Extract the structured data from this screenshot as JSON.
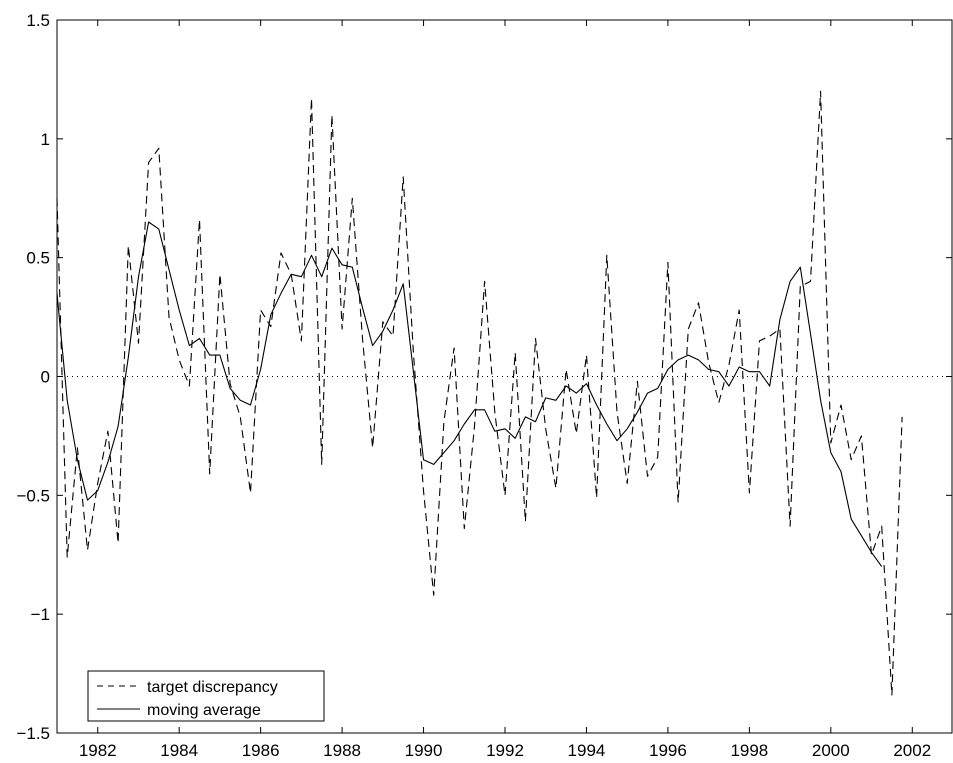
{
  "chart_data": {
    "type": "line",
    "title": "",
    "xlabel": "",
    "ylabel": "",
    "xlim": [
      1981,
      2003
    ],
    "ylim": [
      -1.5,
      1.5
    ],
    "xticks": [
      1982,
      1984,
      1986,
      1988,
      1990,
      1992,
      1994,
      1996,
      1998,
      2000,
      2002
    ],
    "yticks": [
      -1.5,
      -1,
      -0.5,
      0,
      0.5,
      1,
      1.5
    ],
    "xtick_labels": [
      "1982",
      "1984",
      "1986",
      "1988",
      "1990",
      "1992",
      "1994",
      "1996",
      "1998",
      "2000",
      "2002"
    ],
    "ytick_labels": [
      "−1.5",
      "−1",
      "−0.5",
      "0",
      "0.5",
      "1",
      "1.5"
    ],
    "grid": false,
    "zero_line": {
      "y": 0,
      "style": "dotted"
    },
    "legend": {
      "position": "bottom-left",
      "entries": [
        {
          "label": "target discrepancy",
          "style": "dashed"
        },
        {
          "label": "moving average",
          "style": "solid"
        }
      ]
    },
    "series": [
      {
        "name": "target discrepancy",
        "style": "dashed",
        "color": "#000000",
        "x": [
          1981.0,
          1981.25,
          1981.5,
          1981.75,
          1982.0,
          1982.25,
          1982.5,
          1982.75,
          1983.0,
          1983.25,
          1983.5,
          1983.75,
          1984.0,
          1984.25,
          1984.5,
          1984.75,
          1985.0,
          1985.25,
          1985.5,
          1985.75,
          1986.0,
          1986.25,
          1986.5,
          1986.75,
          1987.0,
          1987.25,
          1987.5,
          1987.75,
          1988.0,
          1988.25,
          1988.5,
          1988.75,
          1989.0,
          1989.25,
          1989.5,
          1989.75,
          1990.0,
          1990.25,
          1990.5,
          1990.75,
          1991.0,
          1991.25,
          1991.5,
          1991.75,
          1992.0,
          1992.25,
          1992.5,
          1992.75,
          1993.0,
          1993.25,
          1993.5,
          1993.75,
          1994.0,
          1994.25,
          1994.5,
          1994.75,
          1995.0,
          1995.25,
          1995.5,
          1995.75,
          1996.0,
          1996.25,
          1996.5,
          1996.75,
          1997.0,
          1997.25,
          1997.5,
          1997.75,
          1998.0,
          1998.25,
          1998.5,
          1998.75,
          1999.0,
          1999.25,
          1999.5,
          1999.75,
          2000.0,
          2000.25,
          2000.5,
          2000.75,
          2001.0,
          2001.25,
          2001.5,
          2001.75
        ],
        "values": [
          0.75,
          -0.76,
          -0.3,
          -0.73,
          -0.45,
          -0.23,
          -0.7,
          0.55,
          0.14,
          0.9,
          0.96,
          0.25,
          0.07,
          -0.04,
          0.66,
          -0.41,
          0.43,
          -0.03,
          -0.17,
          -0.49,
          0.28,
          0.21,
          0.52,
          0.43,
          0.15,
          1.17,
          -0.37,
          1.1,
          0.2,
          0.75,
          0.16,
          -0.3,
          0.23,
          0.17,
          0.84,
          0.1,
          -0.48,
          -0.92,
          -0.19,
          0.12,
          -0.64,
          -0.21,
          0.4,
          -0.15,
          -0.5,
          0.1,
          -0.61,
          0.16,
          -0.22,
          -0.47,
          0.03,
          -0.24,
          0.09,
          -0.51,
          0.51,
          -0.15,
          -0.45,
          -0.02,
          -0.42,
          -0.34,
          0.48,
          -0.53,
          0.2,
          0.31,
          0.06,
          -0.11,
          0.05,
          0.28,
          -0.49,
          0.15,
          0.17,
          0.2,
          -0.63,
          0.38,
          0.4,
          1.2,
          -0.28,
          -0.12,
          -0.35,
          -0.25,
          -0.75,
          -0.63,
          -1.34,
          -0.17
        ]
      },
      {
        "name": "moving average",
        "style": "solid",
        "color": "#000000",
        "x": [
          1981.0,
          1981.25,
          1981.5,
          1981.75,
          1982.0,
          1982.25,
          1982.5,
          1982.75,
          1983.0,
          1983.25,
          1983.5,
          1983.75,
          1984.0,
          1984.25,
          1984.5,
          1984.75,
          1985.0,
          1985.25,
          1985.5,
          1985.75,
          1986.0,
          1986.25,
          1986.5,
          1986.75,
          1987.0,
          1987.25,
          1987.5,
          1987.75,
          1988.0,
          1988.25,
          1988.5,
          1988.75,
          1989.0,
          1989.25,
          1989.5,
          1989.75,
          1990.0,
          1990.25,
          1990.5,
          1990.75,
          1991.0,
          1991.25,
          1991.5,
          1991.75,
          1992.0,
          1992.25,
          1992.5,
          1992.75,
          1993.0,
          1993.25,
          1993.5,
          1993.75,
          1994.0,
          1994.25,
          1994.5,
          1994.75,
          1995.0,
          1995.25,
          1995.5,
          1995.75,
          1996.0,
          1996.25,
          1996.5,
          1996.75,
          1997.0,
          1997.25,
          1997.5,
          1997.75,
          1998.0,
          1998.25,
          1998.5,
          1998.75,
          1999.0,
          1999.25,
          1999.5,
          1999.75,
          2000.0,
          2000.25,
          2000.5,
          2000.75,
          2001.0,
          2001.25
        ],
        "values": [
          0.35,
          -0.1,
          -0.35,
          -0.52,
          -0.48,
          -0.36,
          -0.21,
          0.08,
          0.42,
          0.65,
          0.62,
          0.45,
          0.28,
          0.13,
          0.16,
          0.09,
          0.09,
          -0.05,
          -0.1,
          -0.12,
          0.03,
          0.26,
          0.35,
          0.43,
          0.42,
          0.51,
          0.42,
          0.54,
          0.47,
          0.46,
          0.29,
          0.13,
          0.19,
          0.28,
          0.39,
          0.02,
          -0.35,
          -0.37,
          -0.32,
          -0.27,
          -0.2,
          -0.14,
          -0.14,
          -0.23,
          -0.22,
          -0.26,
          -0.17,
          -0.19,
          -0.09,
          -0.1,
          -0.04,
          -0.07,
          -0.03,
          -0.12,
          -0.2,
          -0.27,
          -0.22,
          -0.15,
          -0.07,
          -0.05,
          0.03,
          0.07,
          0.09,
          0.07,
          0.03,
          0.02,
          -0.04,
          0.04,
          0.02,
          0.02,
          -0.04,
          0.24,
          0.4,
          0.46,
          0.18,
          -0.1,
          -0.32,
          -0.4,
          -0.6,
          -0.67,
          -0.74,
          -0.8
        ]
      }
    ]
  }
}
